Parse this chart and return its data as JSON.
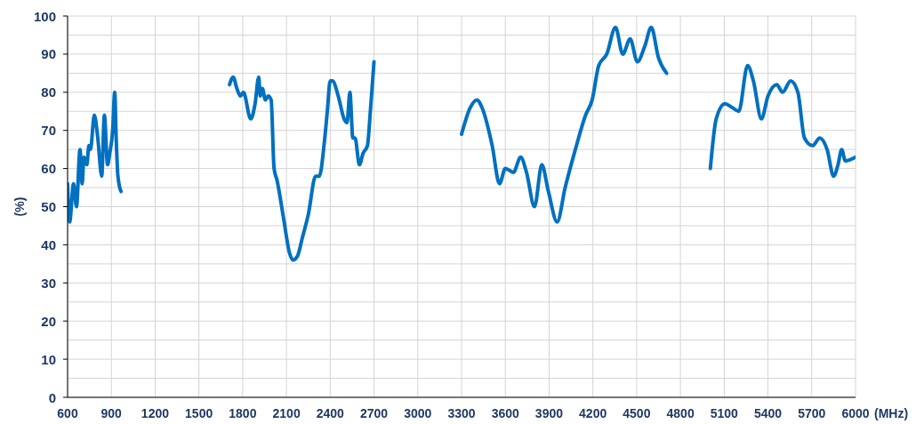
{
  "chart_data": {
    "type": "line",
    "xlabel": "(MHz)",
    "ylabel": "(%)",
    "x": [
      600,
      614,
      641,
      661,
      685,
      700,
      712,
      732,
      746,
      757,
      783,
      807,
      834,
      852,
      874,
      889,
      909,
      923,
      933,
      945,
      966,
      1300,
      1710,
      1735,
      1760,
      1785,
      1805,
      1855,
      1885,
      1910,
      1920,
      1935,
      1955,
      1975,
      1995,
      2015,
      2035,
      2080,
      2120,
      2145,
      2175,
      2210,
      2250,
      2300,
      2325,
      2360,
      2380,
      2400,
      2415,
      2455,
      2495,
      2515,
      2535,
      2555,
      2570,
      2600,
      2625,
      2655,
      2675,
      2700,
      3000,
      3300,
      3360,
      3405,
      3440,
      3510,
      3560,
      3600,
      3655,
      3705,
      3745,
      3800,
      3850,
      3895,
      3955,
      4010,
      4080,
      4150,
      4195,
      4240,
      4295,
      4355,
      4405,
      4455,
      4505,
      4555,
      4600,
      4650,
      4705,
      4850,
      5005,
      5045,
      5105,
      5155,
      5200,
      5260,
      5300,
      5355,
      5400,
      5460,
      5500,
      5555,
      5605,
      5650,
      5705,
      5755,
      5805,
      5850,
      5880,
      5905,
      5930,
      6000
    ],
    "values": [
      56,
      46,
      56,
      50,
      65,
      56,
      63,
      61,
      66,
      65,
      74,
      68,
      58,
      74,
      61,
      64,
      70,
      80,
      68,
      58,
      54,
      null,
      82,
      84,
      81,
      79,
      80,
      73,
      77,
      84,
      79,
      81,
      78,
      79,
      78,
      60,
      57,
      47,
      38,
      36,
      37,
      42,
      48,
      58,
      58,
      67,
      75,
      83,
      83,
      79,
      73,
      72,
      80,
      68,
      68,
      61,
      64,
      66,
      75,
      88,
      null,
      69,
      76,
      78,
      76,
      66,
      56,
      60,
      59,
      63,
      59,
      50,
      61,
      54,
      46,
      55,
      65,
      74,
      78,
      87,
      90,
      97,
      90,
      94,
      88,
      92,
      97,
      89,
      85,
      null,
      60,
      73,
      77,
      76,
      75,
      87,
      83,
      73,
      79,
      82,
      80,
      83,
      80,
      68,
      66,
      68,
      65,
      58,
      61,
      65,
      62,
      63
    ],
    "color": "#0070c0",
    "marker": "none",
    "xlim": [
      600,
      6000
    ],
    "ylim": [
      0,
      100
    ],
    "xticks": [
      600,
      900,
      1200,
      1500,
      1800,
      2100,
      2400,
      2700,
      3000,
      3300,
      3600,
      3900,
      4200,
      4500,
      4800,
      5100,
      5400,
      5700,
      6000
    ],
    "yticks": [
      0,
      {
        "value": 5,
        "label": null
      },
      10,
      {
        "value": 15,
        "label": null
      },
      20,
      {
        "value": 25,
        "label": null
      },
      30,
      {
        "value": 35,
        "label": null
      },
      40,
      {
        "value": 45,
        "label": null
      },
      50,
      {
        "value": 55,
        "label": null
      },
      60,
      {
        "value": 65,
        "label": null
      },
      70,
      {
        "value": 75,
        "label": null
      },
      80,
      {
        "value": 85,
        "label": null
      },
      90,
      {
        "value": 95,
        "label": null
      },
      100
    ],
    "grid": true
  }
}
